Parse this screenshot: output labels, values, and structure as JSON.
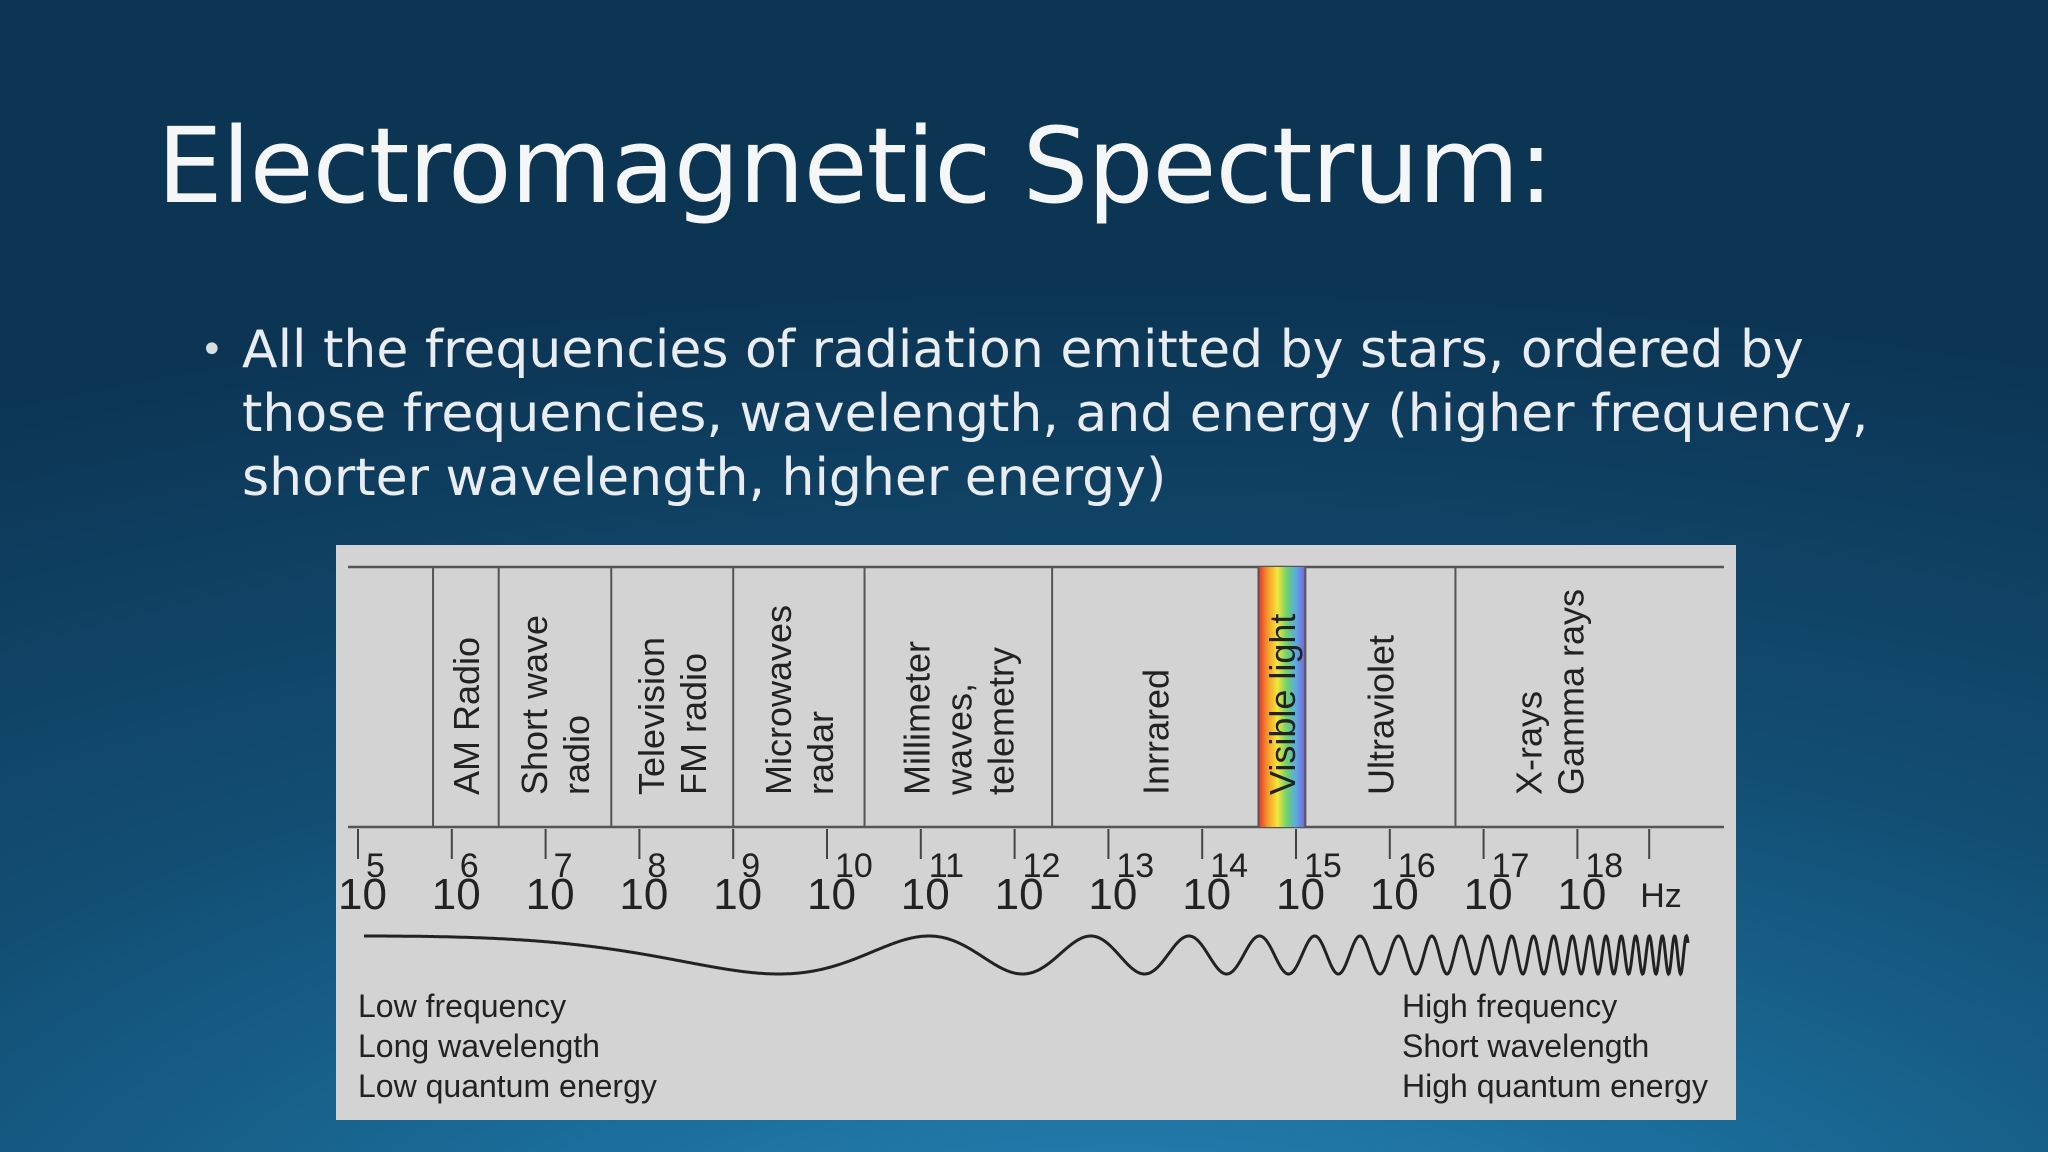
{
  "slide": {
    "title": "Electromagnetic Spectrum:",
    "bullet": "All the frequencies of radiation emitted by stars, ordered by those frequencies, wavelength, and energy (higher frequency, shorter wavelength, higher energy)"
  },
  "spectrum": {
    "bands": [
      {
        "lines": [
          "AM Radio"
        ],
        "from": 5.8,
        "to": 6.5
      },
      {
        "lines": [
          "Short wave",
          "radio"
        ],
        "from": 6.5,
        "to": 7.7
      },
      {
        "lines": [
          "Television",
          "FM radio"
        ],
        "from": 7.7,
        "to": 9.0
      },
      {
        "lines": [
          "Microwaves",
          "radar"
        ],
        "from": 9.0,
        "to": 10.4
      },
      {
        "lines": [
          "Millimeter",
          "waves,",
          "telemetry"
        ],
        "from": 10.4,
        "to": 12.4
      },
      {
        "lines": [
          "Inrrared"
        ],
        "from": 12.4,
        "to": 14.6
      },
      {
        "lines": [
          "Visible light"
        ],
        "from": 14.6,
        "to": 15.1
      },
      {
        "lines": [
          "Ultraviolet"
        ],
        "from": 15.1,
        "to": 16.7
      },
      {
        "lines": [
          "X-rays",
          "Gamma rays"
        ],
        "from": 16.7,
        "to": 18.7
      }
    ],
    "tick_base": "10",
    "tick_exponents": [
      "5",
      "6",
      "7",
      "8",
      "9",
      "10",
      "11",
      "12",
      "13",
      "14",
      "15",
      "16",
      "17",
      "18"
    ],
    "unit": "Hz",
    "low_end": [
      "Low frequency",
      "Long wavelength",
      "Low quantum energy"
    ],
    "high_end": [
      "High frequency",
      "Short wavelength",
      "High quantum energy"
    ],
    "rainbow_colors": [
      "#e8322f",
      "#f39a2a",
      "#f5e63a",
      "#6fd36a",
      "#5aa9e6",
      "#7d5fd0"
    ]
  }
}
